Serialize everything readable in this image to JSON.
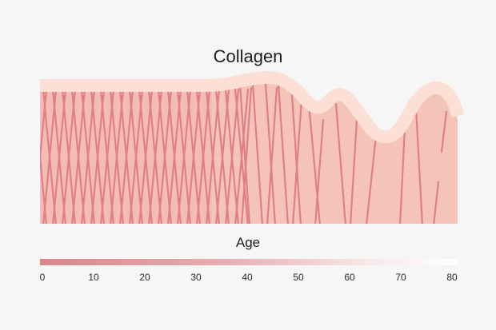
{
  "title": "Collagen",
  "age_axis": {
    "label": "Age",
    "ticks": [
      "0",
      "10",
      "20",
      "30",
      "40",
      "50",
      "60",
      "70",
      "80"
    ]
  },
  "colors": {
    "background": "#f6f6f6",
    "skin_fill": "#f4c4b8",
    "skin_fill_dense": "#f3bfb9",
    "fiber": "#e07f88",
    "epidermis": "#fde0d5",
    "gradient_start": "#d9868d",
    "gradient_end": "#ffffff"
  }
}
